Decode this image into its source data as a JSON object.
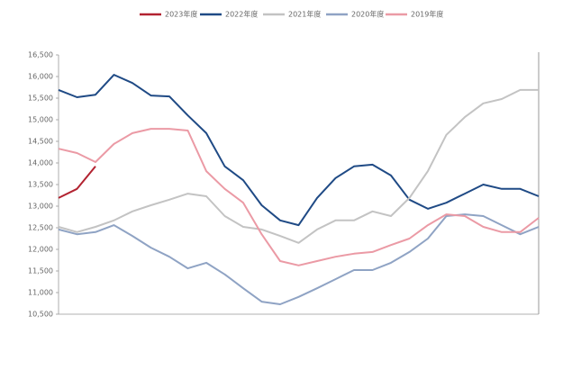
{
  "chart_data": {
    "type": "line",
    "categories": [
      null,
      null,
      null,
      null,
      null,
      null,
      null,
      null,
      null,
      null,
      null,
      null,
      null,
      null,
      null,
      null,
      null,
      null,
      null,
      null,
      null,
      null,
      null,
      null,
      null,
      null,
      null
    ],
    "ylim": [
      10500,
      16500
    ],
    "yticks": [
      {
        "value": 10500,
        "label": "10,500"
      },
      {
        "value": 11000,
        "label": "11,000"
      },
      {
        "value": 11500,
        "label": "11,500"
      },
      {
        "value": 12000,
        "label": "12,000"
      },
      {
        "value": 12500,
        "label": "12,500"
      },
      {
        "value": 13000,
        "label": "13,000"
      },
      {
        "value": 13500,
        "label": "13,500"
      },
      {
        "value": 14000,
        "label": "14,000"
      },
      {
        "value": 14500,
        "label": "14,500"
      },
      {
        "value": 15000,
        "label": "15,000"
      },
      {
        "value": 15500,
        "label": "15,500"
      },
      {
        "value": 16000,
        "label": "16,000"
      },
      {
        "value": 16500,
        "label": "16,500"
      }
    ],
    "grid": false,
    "legend": "top",
    "series": [
      {
        "name": "2023年度",
        "color": "#b22230",
        "values": [
          13190,
          13400,
          13920,
          null,
          null,
          null,
          null,
          null,
          null,
          null,
          null,
          null,
          null,
          null,
          null,
          null,
          null,
          null,
          null,
          null,
          null,
          null,
          null,
          null,
          null,
          null,
          null
        ]
      },
      {
        "name": "2022年度",
        "color": "#1f4a85",
        "values": [
          15690,
          15520,
          15580,
          16040,
          15850,
          15560,
          15540,
          15100,
          14690,
          13920,
          13600,
          13020,
          12670,
          12560,
          13190,
          13650,
          13920,
          13960,
          13710,
          13150,
          12940,
          13080,
          13290,
          13500,
          13400,
          13400,
          13230
        ]
      },
      {
        "name": "2021年度",
        "color": "#c3c3c3",
        "values": [
          12520,
          12400,
          12520,
          12670,
          12880,
          13020,
          13150,
          13290,
          13230,
          12770,
          12520,
          12460,
          12310,
          12150,
          12460,
          12670,
          12670,
          12880,
          12770,
          13190,
          13810,
          14650,
          15060,
          15380,
          15480,
          15690,
          15690
        ]
      },
      {
        "name": "2020年度",
        "color": "#8fa3c4",
        "values": [
          12460,
          12350,
          12400,
          12560,
          12310,
          12040,
          11830,
          11560,
          11690,
          11420,
          11100,
          10790,
          10730,
          10900,
          11100,
          11310,
          11520,
          11520,
          11690,
          11940,
          12250,
          12770,
          12810,
          12770,
          12560,
          12350,
          12520
        ]
      },
      {
        "name": "2019年度",
        "color": "#eb9aa5",
        "values": [
          14330,
          14230,
          14020,
          14440,
          14690,
          14790,
          14790,
          14750,
          13810,
          13400,
          13080,
          12350,
          11730,
          11630,
          11730,
          11830,
          11900,
          11940,
          12100,
          12250,
          12560,
          12810,
          12770,
          12520,
          12400,
          12400,
          12730
        ]
      }
    ]
  }
}
